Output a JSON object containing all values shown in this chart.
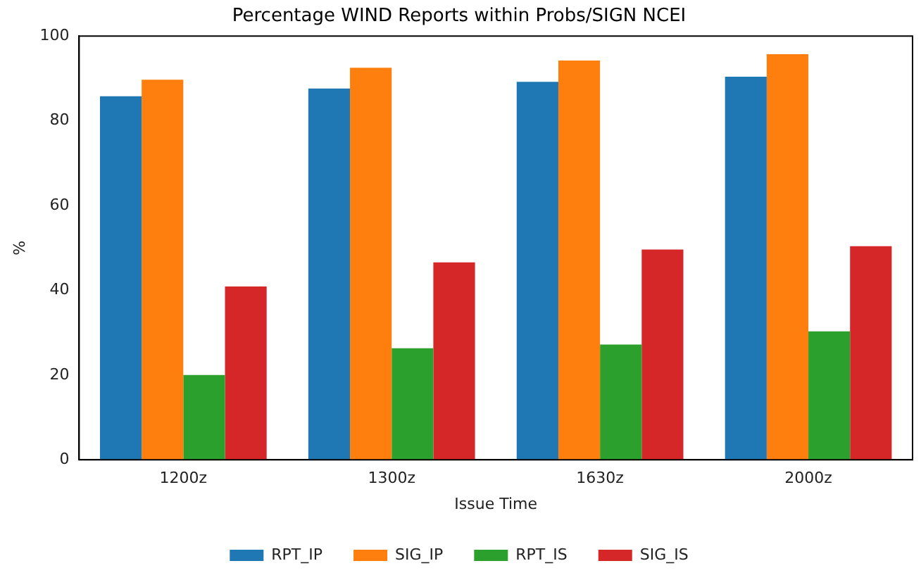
{
  "chart_data": {
    "type": "bar",
    "title": "Percentage WIND Reports within Probs/SIGN NCEI",
    "xlabel": "Issue Time",
    "ylabel": "%",
    "categories": [
      "1200z",
      "1300z",
      "1630z",
      "2000z"
    ],
    "series": [
      {
        "name": "RPT_IP",
        "color": "#1f77b4",
        "values": [
          85.8,
          87.6,
          89.2,
          90.4
        ]
      },
      {
        "name": "SIG_IP",
        "color": "#ff7f0e",
        "values": [
          89.7,
          92.5,
          94.2,
          95.7
        ]
      },
      {
        "name": "RPT_IS",
        "color": "#2ca02c",
        "values": [
          20.0,
          26.3,
          27.2,
          30.3
        ]
      },
      {
        "name": "SIG_IS",
        "color": "#d62728",
        "values": [
          40.9,
          46.6,
          49.6,
          50.4
        ]
      }
    ],
    "ylim": [
      0,
      100
    ],
    "yticks": [
      0,
      20,
      40,
      60,
      80,
      100
    ],
    "grid": false,
    "legend": "bottom"
  }
}
